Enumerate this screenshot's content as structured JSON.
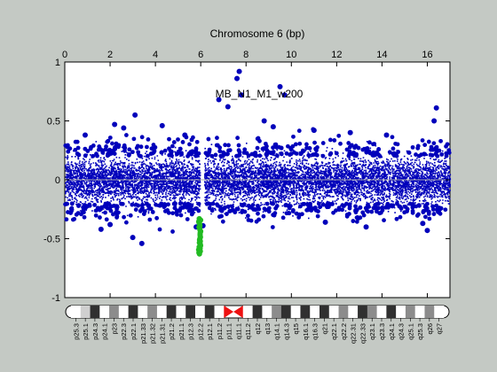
{
  "chart_data": {
    "type": "scatter",
    "title": "Chromosome 6 (bp)",
    "annotation": "MB_N1_M1_w200",
    "xlabel": "",
    "ylabel": "",
    "x_axis_position": "top",
    "xlim": [
      0,
      17
    ],
    "ylim": [
      -1,
      1
    ],
    "x_ticks": [
      "0",
      "2",
      "4",
      "6",
      "8",
      "10",
      "12",
      "14",
      "16"
    ],
    "y_ticks": [
      "1",
      "0.5",
      "0",
      "-0.5",
      "-1"
    ],
    "grid": false,
    "legend": "none",
    "baseline": 0,
    "colors": {
      "figure_bg": "#c4c9c4",
      "plot_bg": "#ffffff",
      "points": "#0000bb",
      "highlight": "#22bb22",
      "baseline": "#aaaaaa",
      "centromere": "#ee1111"
    },
    "series": [
      {
        "color": "#0000bb",
        "points": [
          [
            7.7,
            0.92
          ],
          [
            7.6,
            0.86
          ],
          [
            6.8,
            0.68
          ],
          [
            7.2,
            0.62
          ],
          [
            7.8,
            0.72
          ],
          [
            9.5,
            0.79
          ],
          [
            9.7,
            0.72
          ],
          [
            3.1,
            0.55
          ],
          [
            2.2,
            0.47
          ],
          [
            2.6,
            0.44
          ],
          [
            4.3,
            0.46
          ],
          [
            16.4,
            0.61
          ],
          [
            16.3,
            0.5
          ],
          [
            8.8,
            0.5
          ],
          [
            9.2,
            0.45
          ],
          [
            11.0,
            0.42
          ],
          [
            12.6,
            0.4
          ],
          [
            3.0,
            -0.49
          ],
          [
            3.4,
            -0.54
          ],
          [
            16.0,
            -0.43
          ],
          [
            15.8,
            -0.37
          ],
          [
            1.6,
            -0.42
          ],
          [
            2.0,
            -0.38
          ],
          [
            13.3,
            -0.4
          ],
          [
            11.5,
            -0.36
          ],
          [
            5.3,
            0.38
          ],
          [
            0.9,
            0.38
          ],
          [
            14.2,
            0.38
          ],
          [
            5.8,
            -0.4
          ],
          [
            6.1,
            -0.39
          ]
        ]
      },
      {
        "color": "#22bb22",
        "x_range": [
          5.9,
          6.0
        ],
        "y_range": [
          -0.64,
          -0.33
        ]
      }
    ],
    "ideogram": {
      "bands": [
        "p25.3",
        "p25.1",
        "p24.3",
        "p24.1",
        "p23",
        "p22.3",
        "p22.1",
        "p21.33",
        "p21.32",
        "p21.31",
        "p21.2",
        "p21.1",
        "p12.3",
        "p12.2",
        "p12.1",
        "p11.2",
        "p11.1",
        "q11.1",
        "q11.2",
        "q12",
        "q13",
        "q14.1",
        "q14.3",
        "q15",
        "q16.1",
        "q16.3",
        "q21",
        "q22.1",
        "q22.2",
        "q22.31",
        "q22.33",
        "q23.1",
        "q23.3",
        "q24.1",
        "q24.3",
        "q25.1",
        "q25.3",
        "q26",
        "q27"
      ],
      "stains": [
        "w",
        "l",
        "d",
        "w",
        "m",
        "w",
        "d",
        "w",
        "m",
        "w",
        "d",
        "w",
        "d",
        "w",
        "d",
        "w",
        "c",
        "c",
        "w",
        "d",
        "w",
        "m",
        "d",
        "w",
        "d",
        "w",
        "d",
        "w",
        "m",
        "w",
        "d",
        "m",
        "w",
        "d",
        "w",
        "m",
        "w",
        "m",
        "w"
      ]
    }
  }
}
